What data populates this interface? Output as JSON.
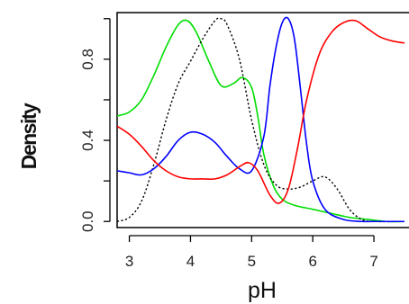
{
  "chart_data": {
    "type": "line",
    "title": "",
    "xlabel": "pH",
    "ylabel": "Density",
    "xlim": [
      2.8,
      7.5
    ],
    "ylim": [
      -0.03,
      1.03
    ],
    "xticks": [
      3,
      4,
      5,
      6,
      7
    ],
    "xtick_labels": [
      "3",
      "4",
      "5",
      "6",
      "7"
    ],
    "yticks": [
      0.0,
      0.4,
      0.8
    ],
    "ytick_labels": [
      "0.0",
      "0.4",
      "0.8"
    ],
    "grid": false,
    "legend": "none",
    "series": [
      {
        "color": "#00dd00",
        "dash": "solid",
        "x": [
          2.8,
          3.0,
          3.2,
          3.4,
          3.6,
          3.8,
          3.95,
          4.1,
          4.3,
          4.5,
          4.7,
          4.85,
          5.0,
          5.1,
          5.2,
          5.35,
          5.5,
          5.7,
          6.0,
          6.3,
          6.6,
          6.9,
          7.2,
          7.5
        ],
        "y": [
          0.52,
          0.54,
          0.6,
          0.72,
          0.86,
          0.97,
          0.99,
          0.93,
          0.79,
          0.67,
          0.68,
          0.71,
          0.66,
          0.52,
          0.33,
          0.18,
          0.11,
          0.08,
          0.06,
          0.04,
          0.02,
          0.01,
          0.0,
          0.0
        ]
      },
      {
        "color": "#000000",
        "dash": "dotted",
        "x": [
          2.8,
          3.0,
          3.2,
          3.4,
          3.6,
          3.8,
          4.0,
          4.2,
          4.4,
          4.5,
          4.6,
          4.8,
          5.0,
          5.2,
          5.4,
          5.6,
          5.8,
          6.0,
          6.2,
          6.4,
          6.6,
          6.8,
          7.0,
          7.5
        ],
        "y": [
          0.0,
          0.02,
          0.1,
          0.28,
          0.5,
          0.68,
          0.79,
          0.9,
          0.99,
          1.0,
          0.97,
          0.8,
          0.5,
          0.28,
          0.18,
          0.16,
          0.17,
          0.2,
          0.22,
          0.16,
          0.06,
          0.01,
          0.0,
          0.0
        ]
      },
      {
        "color": "#0000ff",
        "dash": "solid",
        "x": [
          2.8,
          3.0,
          3.2,
          3.4,
          3.6,
          3.8,
          4.0,
          4.2,
          4.4,
          4.6,
          4.8,
          5.0,
          5.2,
          5.3,
          5.4,
          5.5,
          5.6,
          5.7,
          5.8,
          5.9,
          6.0,
          6.2,
          6.5,
          6.8,
          7.0,
          7.5
        ],
        "y": [
          0.25,
          0.24,
          0.23,
          0.26,
          0.32,
          0.4,
          0.44,
          0.43,
          0.39,
          0.32,
          0.26,
          0.25,
          0.42,
          0.67,
          0.86,
          0.98,
          1.0,
          0.9,
          0.65,
          0.38,
          0.2,
          0.06,
          0.01,
          0.0,
          0.0,
          0.0
        ]
      },
      {
        "color": "#ff0000",
        "dash": "solid",
        "x": [
          2.8,
          3.0,
          3.2,
          3.4,
          3.6,
          3.8,
          4.0,
          4.2,
          4.4,
          4.6,
          4.8,
          4.95,
          5.1,
          5.3,
          5.45,
          5.6,
          5.75,
          5.9,
          6.1,
          6.3,
          6.5,
          6.7,
          6.9,
          7.1,
          7.3,
          7.5
        ],
        "y": [
          0.47,
          0.43,
          0.37,
          0.3,
          0.25,
          0.22,
          0.21,
          0.21,
          0.21,
          0.23,
          0.27,
          0.29,
          0.25,
          0.13,
          0.09,
          0.16,
          0.36,
          0.6,
          0.82,
          0.93,
          0.98,
          0.99,
          0.95,
          0.91,
          0.89,
          0.88
        ]
      }
    ]
  }
}
